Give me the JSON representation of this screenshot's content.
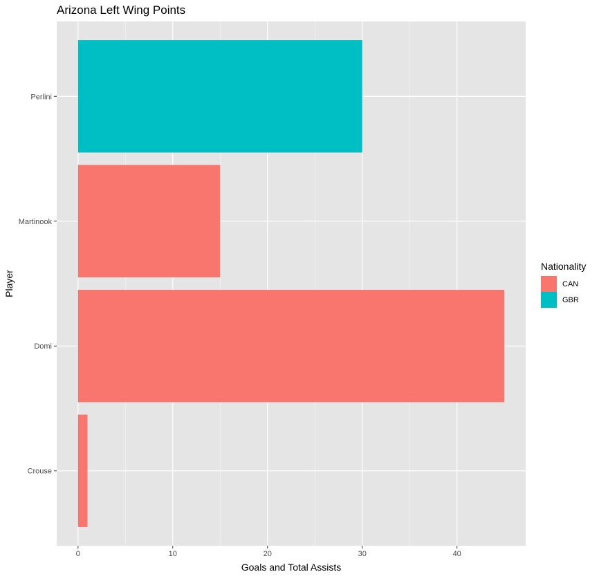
{
  "chart_data": {
    "type": "bar",
    "orientation": "horizontal",
    "title": "Arizona Left Wing Points",
    "xlabel": "Goals and Total Assists",
    "ylabel": "Player",
    "categories": [
      "Crouse",
      "Domi",
      "Martinook",
      "Perlini"
    ],
    "values": [
      1,
      45,
      15,
      30
    ],
    "groups": [
      "CAN",
      "CAN",
      "CAN",
      "GBR"
    ],
    "xlim": [
      -2.25,
      47.25
    ],
    "xticks": [
      0,
      10,
      20,
      30,
      40
    ],
    "grid": true,
    "legend": {
      "title": "Nationality",
      "position": "right",
      "entries": [
        {
          "label": "CAN",
          "color": "#F8766D"
        },
        {
          "label": "GBR",
          "color": "#00BFC4"
        }
      ]
    },
    "colors": {
      "CAN": "#F8766D",
      "GBR": "#00BFC4",
      "panel": "#E5E5E5",
      "grid": "#FFFFFF"
    }
  }
}
